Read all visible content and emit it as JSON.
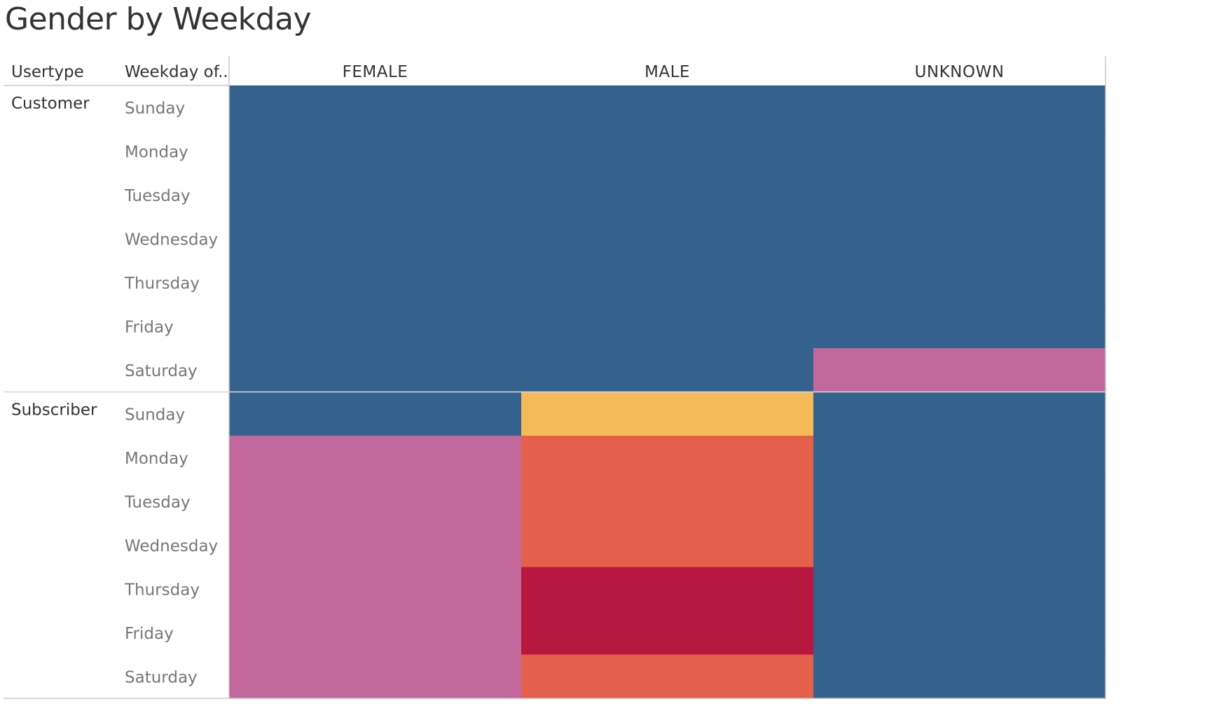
{
  "title": "Gender by Weekday",
  "chart_data": {
    "type": "heatmap",
    "title": "Gender by Weekday",
    "row_headers": [
      "Usertype",
      "Weekday of.."
    ],
    "columns": [
      "FEMALE",
      "MALE",
      "UNKNOWN"
    ],
    "usertypes": [
      "Customer",
      "Subscriber"
    ],
    "weekdays": [
      "Sunday",
      "Monday",
      "Tuesday",
      "Wednesday",
      "Thursday",
      "Friday",
      "Saturday"
    ],
    "colors": {
      "low": "#35618D",
      "mid_low": "#C3689C",
      "mid": "#F5BA5A",
      "mid_high": "#E4604A",
      "high": "#B81740"
    },
    "cells": [
      {
        "usertype": "Customer",
        "levels": [
          [
            "low",
            "low",
            "low"
          ],
          [
            "low",
            "low",
            "low"
          ],
          [
            "low",
            "low",
            "low"
          ],
          [
            "low",
            "low",
            "low"
          ],
          [
            "low",
            "low",
            "low"
          ],
          [
            "low",
            "low",
            "low"
          ],
          [
            "low",
            "low",
            "mid_low"
          ]
        ]
      },
      {
        "usertype": "Subscriber",
        "levels": [
          [
            "low",
            "mid",
            "low"
          ],
          [
            "mid_low",
            "mid_high",
            "low"
          ],
          [
            "mid_low",
            "mid_high",
            "low"
          ],
          [
            "mid_low",
            "mid_high",
            "low"
          ],
          [
            "mid_low",
            "high",
            "low"
          ],
          [
            "mid_low",
            "high",
            "low"
          ],
          [
            "mid_low",
            "mid_high",
            "low"
          ]
        ]
      }
    ]
  }
}
